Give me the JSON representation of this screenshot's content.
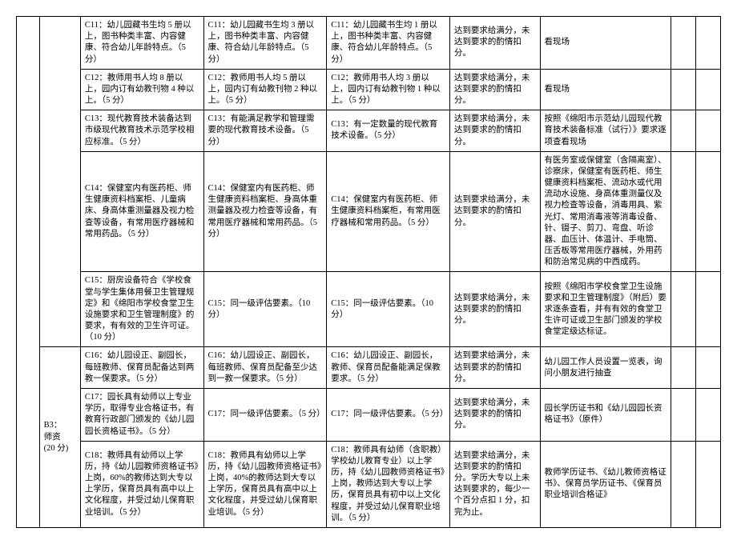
{
  "table": {
    "row_b_label": "B3：\n师资\n(20 分)",
    "rows": [
      {
        "c1": "C11：幼儿园藏书生均 5 册以上，图书种类丰富、内容健康、符合幼儿年龄特点。（5 分）",
        "c2": "C11：幼儿园藏书生均 3 册以上，图书种类丰富、内容健康、符合幼儿年龄特点。（5 分）",
        "c3": "C11：幼儿园藏书生均 1 册以上，图书种类丰富、内容健康、符合幼儿年龄特点。（5 分）",
        "d": "达到要求给满分，未达到要求的酌情扣分。",
        "e": "看现场"
      },
      {
        "c1": "C12：教师用书人均 8 册以上，园内订有幼教刊物 4 种以上。（5 分）",
        "c2": "C12：教师用书人均 5 册以上，园内订有幼教刊物 2 种以上。（5 分）",
        "c3": "C12：教师用书人均 3 册以上，园内订有幼教刊物 1 种以上。（5 分）",
        "d": "达到要求给满分，未达到要求的酌情扣分。",
        "e": "看现场"
      },
      {
        "c1": "C13：现代教育技术装备达到市级现代教育技术示范学校相应标准。（5 分）",
        "c2": "C13：有能满足教学和管理需要的现代教育技术设备。（5 分）",
        "c3": "C13：有一定数量的现代教育技术设备。（5 分）",
        "d": "达到要求给满分，未达到要求的酌情扣分。",
        "e": "按照《绵阳市示范幼儿园现代教育技术装备标准（试行）》要求逐项查看现场"
      },
      {
        "c1": "C14：保健室内有医药柜、师生健康资料档案柜、儿童病床、身高体重测量器及视力检查等设备，有常用医疗器械和常用药品。（5 分）",
        "c2": "C14：保健室内有医药柜、师生健康资料档案柜、身高体重测量器及视力检查等设备，有常用医疗器械和常用药品。（5 分）",
        "c3": "C14：保健室内有医药柜、师生健康资料档案柜，有常用医疗器械和常用药品。（5 分）",
        "d": "达到要求给满分，未达到要求的酌情扣分。",
        "e": "有医务室或保健室（含隔离室）、诊察床，保健室有医药柜、师生健康资料档案柜、流动水或代用流动水设施、身高体重测量仪及视力检查等设备，消毒用具、紫光灯、常用消毒液等消毒设备、针、镊子、剪刀、弯盘、听诊器、血压计、体温计、手电筒、压舌板等常用医疗器械，外用药和防治常见病的中西成药。"
      },
      {
        "c1": "C15：厨房设备符合《学校食堂与学生集体用餐卫生管理规定》和《绵阳市学校食堂卫生设施要求和卫生管理制度》的要求，有有效的卫生许可证。（10 分）",
        "c2": "C15：同一级评估要素。（10 分）",
        "c3": "C15：同一级评估要素。（10 分）",
        "d": "达到要求给满分，未达到要求的酌情扣分。",
        "e": "按照《绵阳市学校食堂卫生设施要求和卫生管理制度》（附后）要求逐条查看，并有有效的食堂卫生许可证或卫生部门颁发的学校食堂定级达标证。"
      },
      {
        "c1": "C16：幼儿园设正、副园长，每班教师、保育员配备达到两教一保要求。（5 分）",
        "c2": "C16：幼儿园设正、副园长，每班教师、保育员配备至少达到一教一保要求。（5 分）",
        "c3": "C16：幼儿园设正、副园长，教师、保育员配备能满足保教要求。（5 分）",
        "d": "达到要求给满分，未达到要求的酌情扣分。",
        "e": "幼儿园工作人员设置一览表，询问小朋友进行抽查"
      },
      {
        "c1": "C17：园长具有幼师以上专业学历，取得专业合格证书，有教育行政部门颁发的《幼儿园园长资格证书》。（5 分）",
        "c2": "C17：同一级评估要素。（5 分）",
        "c3": "C17：同一级评估要素。（5 分）",
        "d": "达到要求给满分，未达到要求的酌情扣分。",
        "e": "园长学历证书和《幼儿园园长资格证书》（原件）"
      },
      {
        "c1": "C18：教师具有幼师以上学历，持《幼儿园教师资格证书》上岗，60%的教师达到大专以上学历，保育员具有高中以上文化程度，并受过幼儿保育职业培训。（5 分）",
        "c2": "C18：教师具有幼师以上学历，持《幼儿园教师资格证书》上岗，40%的教师达到大专以上学历，保育员具有高中以上文化程度，并受过幼儿保育职业培训。（5 分）",
        "c3": "C18：教师具有幼师（含职教）学校幼儿教育专业）以上学历，持《幼儿园教师资格证书》上岗，教师达到大专以上学历，保育员具有初中以上文化程度，并受过幼儿保育职业培训。（5 分）",
        "d": "达到要求给满分，未达到要求的酌情扣分。学历大专以上未达到要求的，每少一个百分点扣 1 分，扣完为止。",
        "e": "教师学历证书、《幼儿教师资格证书》、保育员学历证书、《保育员职业培训合格证》"
      }
    ]
  }
}
